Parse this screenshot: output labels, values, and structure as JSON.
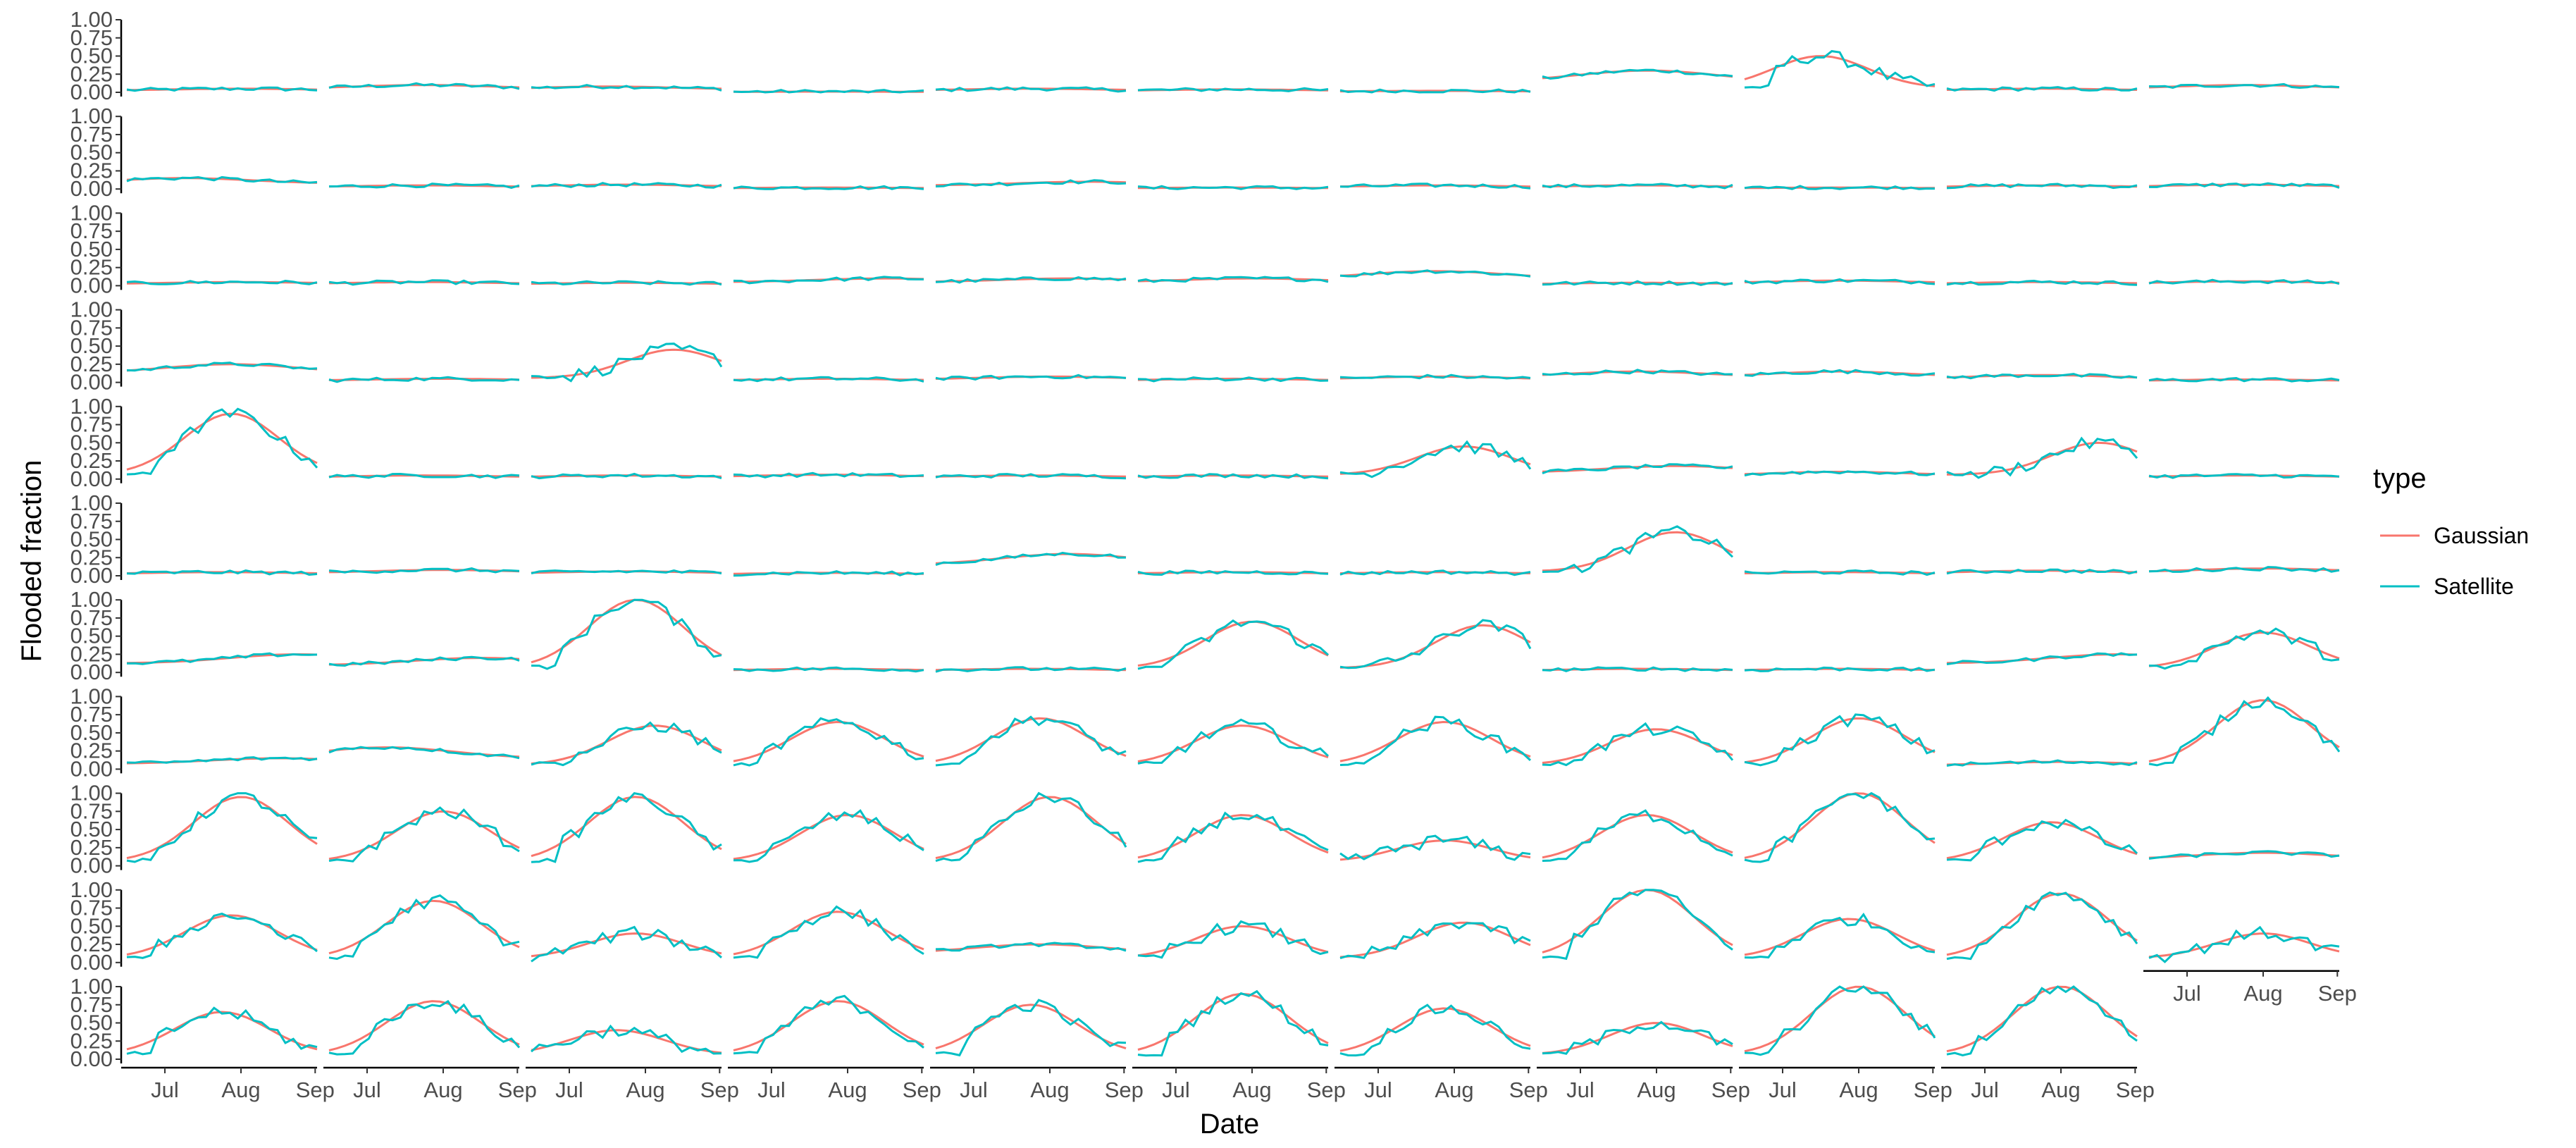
{
  "chart_data": {
    "type": "line",
    "title": "",
    "xlabel": "Date",
    "ylabel": "Flooded fraction",
    "x_ticks": [
      "Jul",
      "Aug",
      "Sep"
    ],
    "y_ticks": [
      "0.00",
      "0.25",
      "0.50",
      "0.75",
      "1.00"
    ],
    "ylim": [
      0,
      1
    ],
    "x_range": [
      "Jun 17",
      "Sep 01"
    ],
    "grid": false,
    "layout": "faceted small multiples, 11 rows x 11 columns (last column has 10 panels)",
    "legend": {
      "title": "type",
      "position": "right",
      "entries": [
        {
          "name": "Gaussian",
          "color": "#F8766D"
        },
        {
          "name": "Satellite",
          "color": "#00BFC4"
        }
      ]
    },
    "series_colors": {
      "Gaussian": "#F8766D",
      "Satellite": "#00BFC4"
    },
    "panel_profiles_gaussian_peak": [
      [
        0.05,
        0.1,
        0.08,
        0.01,
        0.05,
        0.04,
        0.02,
        0.3,
        0.5,
        0.05,
        0.1
      ],
      [
        0.15,
        0.05,
        0.06,
        0.02,
        0.1,
        0.02,
        0.05,
        0.05,
        0.02,
        0.05,
        0.06
      ],
      [
        0.05,
        0.05,
        0.04,
        0.1,
        0.1,
        0.1,
        0.2,
        0.04,
        0.07,
        0.05,
        0.06
      ],
      [
        0.25,
        0.05,
        0.45,
        0.05,
        0.08,
        0.05,
        0.08,
        0.15,
        0.15,
        0.1,
        0.04
      ],
      [
        0.9,
        0.05,
        0.05,
        0.06,
        0.05,
        0.05,
        0.45,
        0.18,
        0.1,
        0.5,
        0.05
      ],
      [
        0.05,
        0.08,
        0.06,
        0.04,
        0.3,
        0.05,
        0.05,
        0.6,
        0.05,
        0.07,
        0.1
      ],
      [
        0.25,
        0.2,
        1.0,
        0.05,
        0.05,
        0.7,
        0.65,
        0.05,
        0.05,
        0.25,
        0.55
      ],
      [
        0.15,
        0.3,
        0.6,
        0.65,
        0.7,
        0.6,
        0.65,
        0.55,
        0.7,
        0.1,
        0.95
      ],
      [
        0.95,
        0.75,
        0.95,
        0.7,
        0.95,
        0.7,
        0.35,
        0.7,
        1.0,
        0.6,
        0.18
      ],
      [
        0.65,
        0.85,
        0.4,
        0.7,
        0.25,
        0.5,
        0.55,
        1.0,
        0.6,
        0.95,
        0.4
      ],
      [
        0.65,
        0.8,
        0.4,
        0.8,
        0.75,
        0.9,
        0.7,
        0.5,
        1.0,
        1.0,
        null
      ]
    ],
    "panel_profiles_gaussian_center": [
      [
        0.6,
        0.5,
        0.4,
        0.5,
        0.5,
        0.5,
        0.5,
        0.55,
        0.4,
        0.5,
        0.5
      ],
      [
        0.3,
        0.5,
        0.5,
        0.5,
        0.8,
        0.5,
        0.5,
        0.5,
        0.5,
        0.5,
        0.5
      ],
      [
        0.6,
        0.5,
        0.5,
        0.8,
        0.7,
        0.6,
        0.5,
        0.5,
        0.5,
        0.5,
        0.5
      ],
      [
        0.55,
        0.6,
        0.75,
        0.5,
        0.6,
        0.5,
        0.5,
        0.5,
        0.5,
        0.5,
        0.5
      ],
      [
        0.55,
        0.5,
        0.5,
        0.5,
        0.5,
        0.5,
        0.65,
        0.7,
        0.5,
        0.8,
        0.5
      ],
      [
        0.5,
        0.6,
        0.5,
        0.5,
        0.7,
        0.5,
        0.5,
        0.7,
        0.5,
        0.5,
        0.6
      ],
      [
        0.9,
        0.8,
        0.55,
        0.5,
        0.5,
        0.6,
        0.75,
        0.5,
        0.5,
        0.9,
        0.6
      ],
      [
        0.8,
        0.3,
        0.65,
        0.55,
        0.55,
        0.55,
        0.55,
        0.6,
        0.6,
        0.6,
        0.6
      ],
      [
        0.6,
        0.6,
        0.55,
        0.6,
        0.6,
        0.55,
        0.55,
        0.55,
        0.6,
        0.55,
        0.6
      ],
      [
        0.55,
        0.55,
        0.55,
        0.55,
        0.55,
        0.55,
        0.65,
        0.55,
        0.55,
        0.6,
        0.6
      ],
      [
        0.5,
        0.55,
        0.45,
        0.55,
        0.5,
        0.55,
        0.55,
        0.6,
        0.6,
        0.6,
        null
      ]
    ]
  }
}
